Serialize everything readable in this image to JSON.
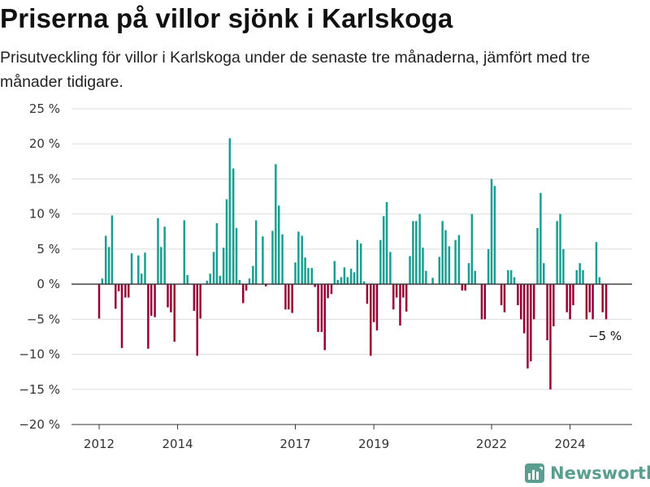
{
  "title": "Priserna på villor sjönk i Karlskoga",
  "subtitle": "Prisutveckling för villor i Karlskoga under de senaste tre månaderna, jämfört med tre månader tidigare.",
  "brand": "Newsworthy",
  "colors": {
    "positive": "#1a9e92",
    "negative": "#990033",
    "grid": "#dddddd",
    "axis": "#333333",
    "brand": "#5a9e8f"
  },
  "chart_data": {
    "type": "bar",
    "ylim": [
      -20,
      25
    ],
    "yticks": [
      -20,
      -15,
      -10,
      -5,
      0,
      5,
      10,
      15,
      20,
      25
    ],
    "ytick_labels": [
      "−20 %",
      "−15 %",
      "−10 %",
      "−5 %",
      "0 %",
      "5 %",
      "10 %",
      "15 %",
      "20 %",
      "25 %"
    ],
    "xticks": [
      2012,
      2014,
      2017,
      2019,
      2022,
      2024
    ],
    "xtick_labels": [
      "2012",
      "2014",
      "2017",
      "2019",
      "2022",
      "2024"
    ],
    "xlim": [
      2011.42,
      2025.5
    ],
    "annotation": "−5 %",
    "x": [
      2012.0,
      2012.08,
      2012.17,
      2012.25,
      2012.33,
      2012.42,
      2012.5,
      2012.58,
      2012.67,
      2012.75,
      2012.83,
      2012.92,
      2013.0,
      2013.08,
      2013.17,
      2013.25,
      2013.33,
      2013.42,
      2013.5,
      2013.58,
      2013.67,
      2013.75,
      2013.83,
      2013.92,
      2014.0,
      2014.08,
      2014.17,
      2014.25,
      2014.33,
      2014.42,
      2014.5,
      2014.58,
      2014.67,
      2014.75,
      2014.83,
      2014.92,
      2015.0,
      2015.08,
      2015.17,
      2015.25,
      2015.33,
      2015.42,
      2015.5,
      2015.58,
      2015.67,
      2015.75,
      2015.83,
      2015.92,
      2016.0,
      2016.08,
      2016.17,
      2016.25,
      2016.33,
      2016.42,
      2016.5,
      2016.58,
      2016.67,
      2016.75,
      2016.83,
      2016.92,
      2017.0,
      2017.08,
      2017.17,
      2017.25,
      2017.33,
      2017.42,
      2017.5,
      2017.58,
      2017.67,
      2017.75,
      2017.83,
      2017.92,
      2018.0,
      2018.08,
      2018.17,
      2018.25,
      2018.33,
      2018.42,
      2018.5,
      2018.58,
      2018.67,
      2018.75,
      2018.83,
      2018.92,
      2019.0,
      2019.08,
      2019.17,
      2019.25,
      2019.33,
      2019.42,
      2019.5,
      2019.58,
      2019.67,
      2019.75,
      2019.83,
      2019.92,
      2020.0,
      2020.08,
      2020.17,
      2020.25,
      2020.33,
      2020.42,
      2020.5,
      2020.58,
      2020.67,
      2020.75,
      2020.83,
      2020.92,
      2021.0,
      2021.08,
      2021.17,
      2021.25,
      2021.33,
      2021.42,
      2021.5,
      2021.58,
      2021.67,
      2021.75,
      2021.83,
      2021.92,
      2022.0,
      2022.08,
      2022.17,
      2022.25,
      2022.33,
      2022.42,
      2022.5,
      2022.58,
      2022.67,
      2022.75,
      2022.83,
      2022.92,
      2023.0,
      2023.08,
      2023.17,
      2023.25,
      2023.33,
      2023.42,
      2023.5,
      2023.58,
      2023.67,
      2023.75,
      2023.83,
      2023.92,
      2024.0,
      2024.08,
      2024.17,
      2024.25,
      2024.33,
      2024.42,
      2024.5,
      2024.58,
      2024.67,
      2024.75,
      2024.83,
      2024.92
    ],
    "values": [
      -4.9,
      0.8,
      6.9,
      5.3,
      9.8,
      -3.5,
      -1.0,
      -9.1,
      -1.9,
      -1.9,
      4.4,
      0,
      4.1,
      1.5,
      4.5,
      -9.2,
      -4.5,
      -4.7,
      9.4,
      5.3,
      8.2,
      -3.3,
      -4.0,
      -8.2,
      0,
      0,
      9.1,
      1.3,
      0,
      -3.8,
      -10.2,
      -4.9,
      0,
      0.5,
      1.5,
      4.6,
      8.7,
      1.2,
      5.2,
      12.1,
      20.8,
      16.5,
      8.0,
      0.6,
      -2.7,
      -0.9,
      0.8,
      2.6,
      9.1,
      0,
      6.8,
      -0.3,
      0,
      7.6,
      17.1,
      11.2,
      7.1,
      -3.6,
      -3.6,
      -4.1,
      3.1,
      7.5,
      6.9,
      3.8,
      2.3,
      2.3,
      -0.4,
      -6.8,
      -6.8,
      -9.4,
      -2.0,
      -1.4,
      3.3,
      0.6,
      1.0,
      2.4,
      1.0,
      2.2,
      1.7,
      6.3,
      5.8,
      0.4,
      -2.8,
      -10.2,
      -5.4,
      -6.6,
      6.3,
      9.7,
      11.7,
      4.6,
      -3.6,
      -1.9,
      -5.9,
      -1.9,
      -3.9,
      4.0,
      9.0,
      9.0,
      10.0,
      5.2,
      1.9,
      0,
      0.9,
      0,
      3.9,
      9.0,
      7.7,
      5.4,
      0,
      6.3,
      7.0,
      -0.9,
      -0.9,
      3.0,
      10.0,
      1.9,
      0,
      -5.0,
      -5.0,
      5.0,
      15.0,
      14.0,
      0,
      -3.0,
      -4.0,
      2.0,
      2.0,
      1.0,
      -3.0,
      -5.0,
      -7.0,
      -12.0,
      -11.0,
      -5.0,
      8.0,
      13.0,
      3.0,
      -8.0,
      -15.0,
      -6.0,
      9.0,
      10.0,
      5.0,
      -4.0,
      -5.0,
      -3.0,
      2.0,
      3.0,
      2.0,
      -5.0,
      -4.0,
      -5.0,
      6.0,
      1.0,
      -4.0,
      -5.0
    ]
  }
}
